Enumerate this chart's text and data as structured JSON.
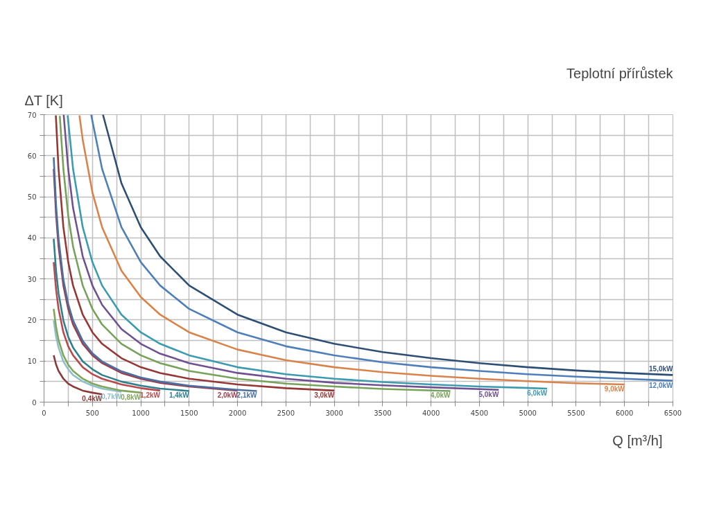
{
  "chart_data": {
    "type": "line",
    "title": "Teplotní přírůstek",
    "ylabel": "ΔT [K]",
    "xlabel": "Q [m³/h]",
    "xlim": [
      0,
      6500
    ],
    "ylim": [
      0,
      70
    ],
    "xticks": [
      0,
      {
        "value": 250,
        "label": null
      },
      500,
      {
        "value": 750,
        "label": null
      },
      1000,
      {
        "value": 1250,
        "label": null
      },
      1500,
      {
        "value": 1750,
        "label": null
      },
      2000,
      {
        "value": 2250,
        "label": null
      },
      2500,
      {
        "value": 2750,
        "label": null
      },
      3000,
      {
        "value": 3250,
        "label": null
      },
      3500,
      {
        "value": 3750,
        "label": null
      },
      4000,
      {
        "value": 4250,
        "label": null
      },
      4500,
      {
        "value": 4750,
        "label": null
      },
      5000,
      {
        "value": 5250,
        "label": null
      },
      5500,
      {
        "value": 5750,
        "label": null
      },
      6000,
      {
        "value": 6250,
        "label": null
      },
      6500
    ],
    "yticks": [
      0,
      {
        "value": 5,
        "label": null
      },
      10,
      {
        "value": 15,
        "label": null
      },
      20,
      {
        "value": 25,
        "label": null
      },
      30,
      {
        "value": 35,
        "label": null
      },
      40,
      {
        "value": 45,
        "label": null
      },
      50,
      {
        "value": 55,
        "label": null
      },
      60,
      {
        "value": 65,
        "label": null
      },
      70
    ],
    "grid": true,
    "marker": "none",
    "line_style": "solid",
    "series": [
      {
        "name": "0,4kW",
        "color": "#8b3a3a",
        "x": [
          100,
          125,
          150,
          200,
          250,
          300,
          400,
          500,
          600
        ],
        "values": [
          11.4,
          9.1,
          7.6,
          5.7,
          4.5,
          3.8,
          2.8,
          2.3,
          1.9
        ]
      },
      {
        "name": "0,7kW",
        "color": "#8fc0ca",
        "x": [
          100,
          125,
          150,
          200,
          250,
          300,
          400,
          500,
          600,
          800
        ],
        "values": [
          19.9,
          15.9,
          13.3,
          9.9,
          8.0,
          6.6,
          5.0,
          4.0,
          3.3,
          2.5
        ]
      },
      {
        "name": "0,8kW",
        "color": "#7fa65a",
        "x": [
          100,
          125,
          150,
          200,
          250,
          300,
          400,
          500,
          600,
          800,
          1000
        ],
        "values": [
          22.7,
          18.2,
          15.1,
          11.4,
          9.1,
          7.6,
          5.7,
          4.5,
          3.8,
          2.8,
          2.3
        ]
      },
      {
        "name": "1,2kW",
        "color": "#b84a4a",
        "x": [
          100,
          125,
          150,
          200,
          250,
          300,
          400,
          500,
          600,
          800,
          1000,
          1200
        ],
        "values": [
          34.1,
          27.3,
          22.7,
          17.0,
          13.6,
          11.4,
          8.5,
          6.8,
          5.7,
          4.3,
          3.4,
          2.8
        ]
      },
      {
        "name": "1,4kW",
        "color": "#2f7f8f",
        "x": [
          100,
          125,
          150,
          200,
          250,
          300,
          400,
          500,
          600,
          800,
          1000,
          1200,
          1500
        ],
        "values": [
          39.8,
          31.8,
          26.5,
          19.9,
          15.9,
          13.3,
          9.9,
          8.0,
          6.6,
          5.0,
          4.0,
          3.3,
          2.7
        ]
      },
      {
        "name": "2,0kW",
        "color": "#9b3f4f",
        "x": [
          100,
          125,
          150,
          200,
          250,
          300,
          400,
          500,
          600,
          800,
          1000,
          1200,
          1500,
          2000
        ],
        "values": [
          56.8,
          45.4,
          37.9,
          28.4,
          22.7,
          18.9,
          14.2,
          11.4,
          9.5,
          7.1,
          5.7,
          4.7,
          3.8,
          2.8
        ]
      },
      {
        "name": "2,1kW",
        "color": "#4a6fa0",
        "x": [
          100,
          125,
          150,
          200,
          250,
          300,
          400,
          500,
          600,
          800,
          1000,
          1200,
          1500,
          2000,
          2200
        ],
        "values": [
          59.6,
          47.7,
          39.8,
          29.8,
          23.9,
          19.9,
          14.9,
          11.9,
          9.9,
          7.5,
          6.0,
          5.0,
          4.0,
          3.0,
          2.7
        ]
      },
      {
        "name": "3,0kW",
        "color": "#953735",
        "x": [
          122,
          150,
          200,
          250,
          300,
          400,
          500,
          600,
          800,
          1000,
          1200,
          1500,
          2000,
          2500,
          3000
        ],
        "values": [
          69.8,
          56.8,
          42.6,
          34.1,
          28.4,
          21.3,
          17.0,
          14.2,
          10.7,
          8.5,
          7.1,
          5.7,
          4.3,
          3.4,
          2.8
        ]
      },
      {
        "name": "4,0kW",
        "color": "#77a25a",
        "x": [
          163,
          200,
          250,
          300,
          400,
          500,
          600,
          800,
          1000,
          1200,
          1500,
          2000,
          2500,
          3000,
          3500,
          4200
        ],
        "values": [
          69.7,
          56.8,
          45.4,
          37.9,
          28.4,
          22.7,
          18.9,
          14.2,
          11.4,
          9.5,
          7.6,
          5.7,
          4.5,
          3.8,
          3.2,
          2.7
        ]
      },
      {
        "name": "5,0kW",
        "color": "#6f5090",
        "x": [
          203,
          250,
          300,
          400,
          500,
          600,
          800,
          1000,
          1200,
          1500,
          2000,
          2500,
          3000,
          3500,
          4000,
          4700
        ],
        "values": [
          70.0,
          56.8,
          47.3,
          35.5,
          28.4,
          23.7,
          17.8,
          14.2,
          11.8,
          9.5,
          7.1,
          5.7,
          4.7,
          4.1,
          3.6,
          3.0
        ]
      },
      {
        "name": "6,0kW",
        "color": "#3b9bb0",
        "x": [
          244,
          300,
          400,
          500,
          600,
          800,
          1000,
          1200,
          1500,
          2000,
          2500,
          3000,
          3500,
          4000,
          4500,
          5200
        ],
        "values": [
          69.8,
          56.8,
          42.6,
          34.1,
          28.4,
          21.3,
          17.0,
          14.2,
          11.4,
          8.5,
          6.8,
          5.7,
          4.9,
          4.3,
          3.8,
          3.3
        ]
      },
      {
        "name": "9,0kW",
        "color": "#d9834a",
        "x": [
          366,
          400,
          500,
          600,
          800,
          1000,
          1200,
          1500,
          2000,
          2500,
          3000,
          3500,
          4000,
          4500,
          5000,
          5500,
          6000
        ],
        "values": [
          69.8,
          63.9,
          51.1,
          42.6,
          32.0,
          25.6,
          21.3,
          17.0,
          12.8,
          10.2,
          8.5,
          7.3,
          6.4,
          5.7,
          5.1,
          4.6,
          4.3
        ]
      },
      {
        "name": "12,0kW",
        "color": "#4f7fb8",
        "x": [
          487,
          600,
          800,
          1000,
          1200,
          1500,
          2000,
          2500,
          3000,
          3500,
          4000,
          4500,
          5000,
          5500,
          6000,
          6500
        ],
        "values": [
          70.0,
          56.8,
          42.6,
          34.1,
          28.4,
          22.7,
          17.0,
          13.6,
          11.4,
          9.7,
          8.5,
          7.6,
          6.8,
          6.2,
          5.7,
          5.2
        ]
      },
      {
        "name": "15,0kW",
        "color": "#2e4f75",
        "x": [
          609,
          800,
          1000,
          1200,
          1500,
          2000,
          2500,
          3000,
          3500,
          4000,
          4500,
          5000,
          5500,
          6000,
          6500
        ],
        "values": [
          70.0,
          53.3,
          42.6,
          35.5,
          28.4,
          21.3,
          17.0,
          14.2,
          12.2,
          10.7,
          9.5,
          8.5,
          7.7,
          7.1,
          6.6
        ]
      }
    ]
  }
}
